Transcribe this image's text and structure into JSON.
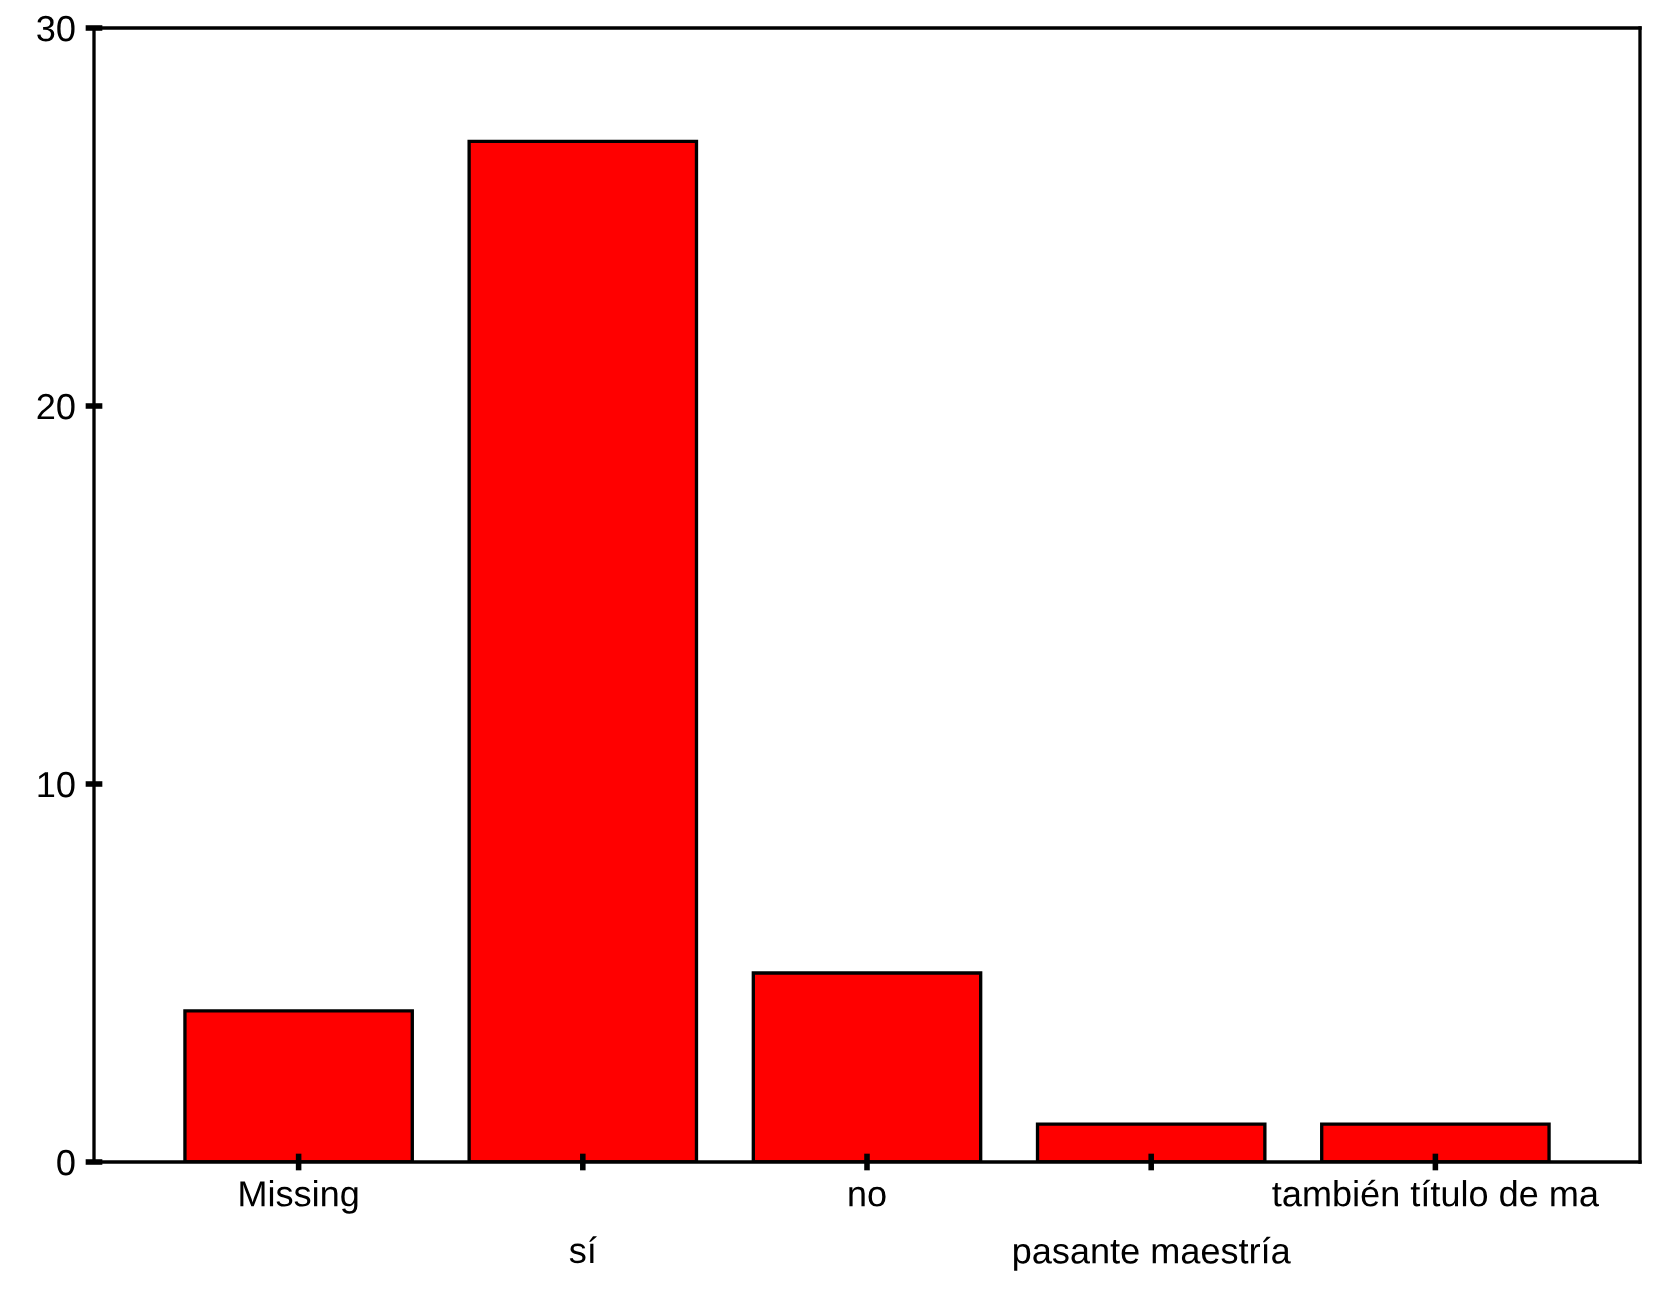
{
  "chart_data": {
    "type": "bar",
    "categories": [
      "Missing",
      "sí",
      "no",
      "pasante maestría",
      "también título de ma"
    ],
    "values": [
      4,
      27,
      5,
      1,
      1
    ],
    "color": "#ff0000",
    "ylim": [
      0,
      30
    ],
    "yticks": [
      0,
      10,
      20,
      30
    ],
    "grid": false
  }
}
